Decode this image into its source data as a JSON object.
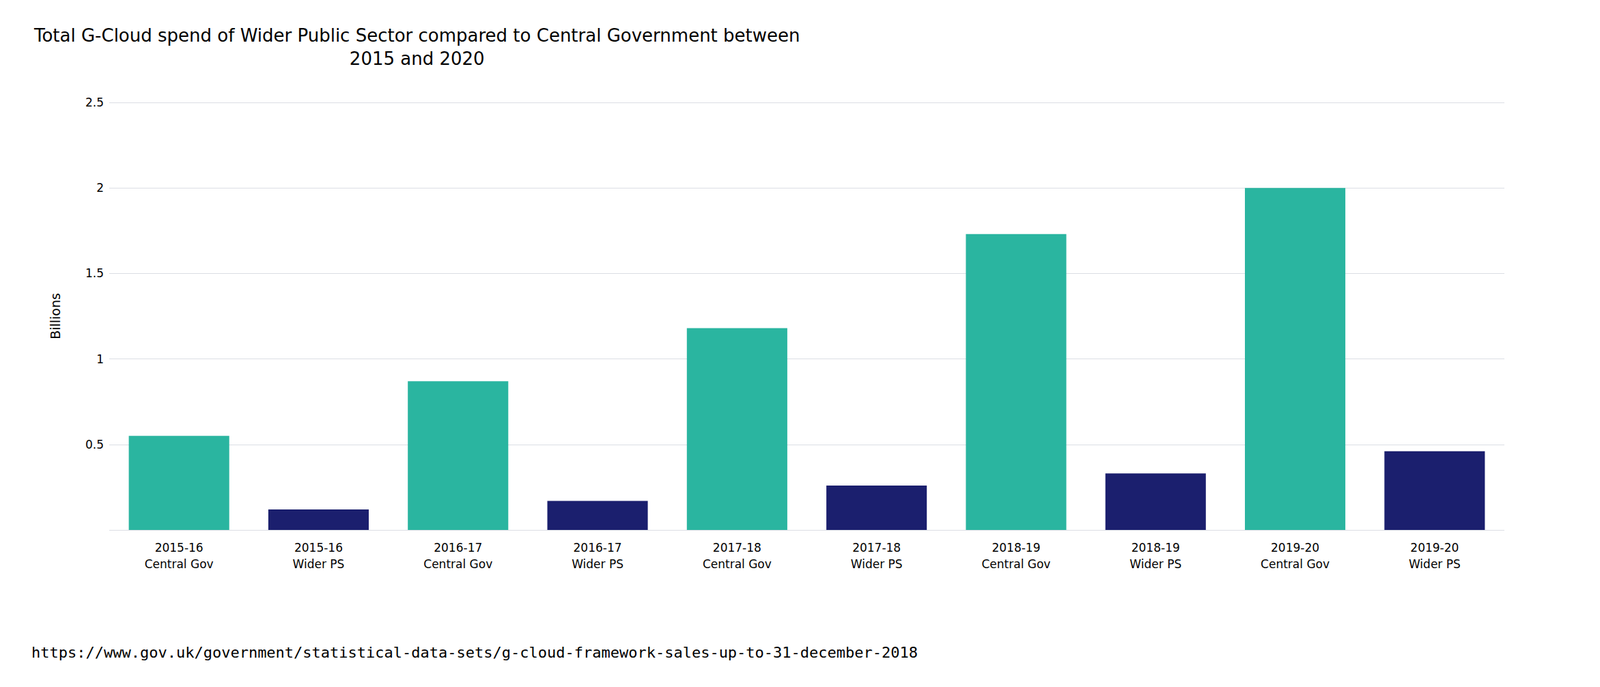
{
  "chart_data": {
    "type": "bar",
    "title": "Total G-Cloud spend of Wider Public Sector compared to Central Government between\n2015 and 2020",
    "ylabel": "Billions",
    "categories": [
      "2015-16\nCentral Gov",
      "2015-16\nWider PS",
      "2016-17\nCentral Gov",
      "2016-17\nWider PS",
      "2017-18\nCentral Gov",
      "2017-18\nWider PS",
      "2018-19\nCentral Gov",
      "2018-19\nWider PS",
      "2019-20\nCentral Gov",
      "2019-20\nWider PS"
    ],
    "values": [
      0.55,
      0.12,
      0.87,
      0.17,
      1.18,
      0.26,
      1.73,
      0.33,
      2.0,
      0.46
    ],
    "colors": [
      "#2ab5a0",
      "#1b1f6e",
      "#2ab5a0",
      "#1b1f6e",
      "#2ab5a0",
      "#1b1f6e",
      "#2ab5a0",
      "#1b1f6e",
      "#2ab5a0",
      "#1b1f6e"
    ],
    "ylim": [
      0,
      2.5
    ],
    "yticks": [
      {
        "value": 0,
        "label": null
      },
      0.5,
      {
        "value": 1.0,
        "label": "1"
      },
      1.5,
      {
        "value": 2.0,
        "label": "2"
      },
      2.5
    ],
    "grid": true,
    "annotations": [
      "https://www.gov.uk/government/statistical-data-sets/g-cloud-framework-sales-up-to-31-december-2018"
    ]
  }
}
